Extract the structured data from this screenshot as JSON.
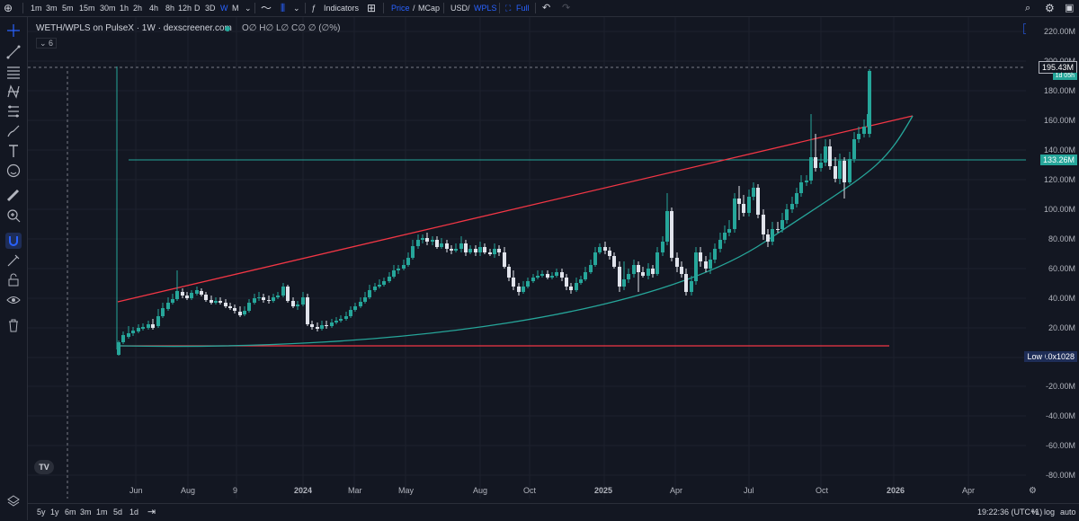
{
  "toolbar": {
    "timeframes": [
      "1m",
      "3m",
      "5m",
      "15m",
      "30m",
      "1h",
      "2h",
      "4h",
      "8h",
      "12h",
      "D",
      "3D",
      "W",
      "M"
    ],
    "active_timeframe": "W",
    "indicators_label": "Indicators",
    "price_label": "Price",
    "mcap_label": "MCap",
    "usd_label": "USD",
    "wpls_label": "WPLS",
    "full_label": "Full",
    "slash": "/"
  },
  "legend": {
    "title": "WETH/WPLS on PulseX · 1W · dexscreener.com",
    "ohlc": "O∅ H∅ L∅ C∅ ∅ (∅%)",
    "collapse": "⌄ 6"
  },
  "price_axis": {
    "labels": [
      "220.00M",
      "200.00M",
      "180.00M",
      "160.00M",
      "140.00M",
      "120.00M",
      "100.00M",
      "80.00M",
      "60.00M",
      "40.00M",
      "20.00M",
      "0.0x1028",
      "-20.00M",
      "-40.00M",
      "-60.00M",
      "-80.00M"
    ],
    "current_price": "195.43M",
    "current_price_sub": "1d 05h",
    "horizontal_line_price": "133.26M",
    "low_label": "Low",
    "low_value": "0.0x1028"
  },
  "time_axis": {
    "labels": [
      "Jun",
      "Aug",
      "9",
      "2024",
      "Mar",
      "May",
      "Aug",
      "Oct",
      "2025",
      "Apr",
      "Jul",
      "Oct",
      "2026",
      "Apr"
    ]
  },
  "bottom": {
    "ranges": [
      "5y",
      "1y",
      "6m",
      "3m",
      "1m",
      "5d",
      "1d"
    ],
    "time": "19:22:36 (UTC+1)",
    "percent": "%",
    "log": "log",
    "auto": "auto"
  },
  "colors": {
    "background": "#131722",
    "up": "#26a69a",
    "down": "#ef5350",
    "trendline": "#f23645",
    "curve": "#26a69a",
    "accent": "#2962ff"
  },
  "icons": {
    "left_tools": [
      "crosshair-icon",
      "trendline-icon",
      "fib-icon",
      "pattern-icon",
      "forecast-icon",
      "brush-icon",
      "text-icon",
      "emoji-icon",
      "ruler-icon",
      "zoom-icon",
      "magnet-icon",
      "lock-draw-icon",
      "lock-icon",
      "eye-icon",
      "trash-icon"
    ],
    "right_tools": [
      "fullscreen-icon",
      "settings-icon",
      "camera-icon",
      "maximize-icon"
    ]
  }
}
